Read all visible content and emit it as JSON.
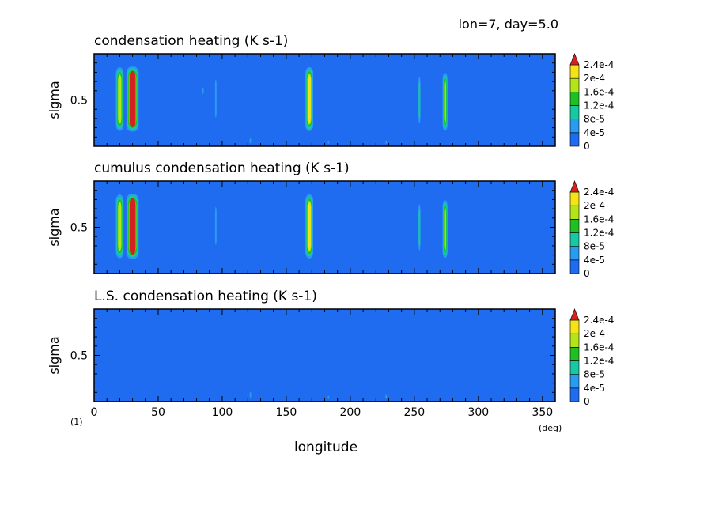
{
  "header": "lon=7, day=5.0",
  "figure_note": "(1)",
  "x_unit": "(deg)",
  "xlabel": "longitude",
  "colors": [
    "#1f6cf0",
    "#2a9cf0",
    "#17c8a3",
    "#21bf24",
    "#b3e51a",
    "#f4e31a",
    "#f09a10",
    "#d42222"
  ],
  "chart_data": [
    {
      "type": "heatmap",
      "title": "condensation heating (K s-1)",
      "ylabel": "sigma",
      "xlim": [
        0,
        360
      ],
      "ylim": [
        1.0,
        0.0
      ],
      "xticks": [
        0,
        50,
        100,
        150,
        200,
        250,
        300,
        350
      ],
      "yticks": [
        0.5
      ],
      "levels": [
        0,
        4e-05,
        8e-05,
        0.00012,
        0.00016,
        0.0002,
        0.00024
      ],
      "level_labels": [
        "0",
        "4e-5",
        "8e-5",
        "1.2e-4",
        "1.6e-4",
        "2e-4",
        "2.4e-4"
      ],
      "features": [
        {
          "x": 20,
          "width": 6,
          "sigma_top": 0.12,
          "sigma_bottom": 0.86,
          "peak": 0.00019
        },
        {
          "x": 30,
          "width": 9,
          "sigma_top": 0.12,
          "sigma_bottom": 0.86,
          "peak": 0.00026
        },
        {
          "x": 95,
          "width": 2,
          "sigma_top": 0.22,
          "sigma_bottom": 0.75,
          "peak": 6e-05
        },
        {
          "x": 85,
          "width": 1,
          "sigma_top": 0.35,
          "sigma_bottom": 0.45,
          "peak": 5e-05
        },
        {
          "x": 168,
          "width": 6,
          "sigma_top": 0.12,
          "sigma_bottom": 0.86,
          "peak": 0.00021
        },
        {
          "x": 254,
          "width": 2,
          "sigma_top": 0.2,
          "sigma_bottom": 0.8,
          "peak": 8e-05
        },
        {
          "x": 274,
          "width": 4,
          "sigma_top": 0.18,
          "sigma_bottom": 0.86,
          "peak": 0.00017
        },
        {
          "x": 122,
          "width": 2,
          "sigma_top": 0.9,
          "sigma_bottom": 0.98,
          "peak": 5e-05
        },
        {
          "x": 228,
          "width": 1.5,
          "sigma_top": 0.93,
          "sigma_bottom": 0.98,
          "peak": 5e-05
        },
        {
          "x": 183,
          "width": 1.5,
          "sigma_top": 0.93,
          "sigma_bottom": 0.98,
          "peak": 4.5e-05
        }
      ]
    },
    {
      "type": "heatmap",
      "title": "cumulus condensation heating (K s-1)",
      "ylabel": "sigma",
      "xlim": [
        0,
        360
      ],
      "ylim": [
        1.0,
        0.0
      ],
      "xticks": [
        0,
        50,
        100,
        150,
        200,
        250,
        300,
        350
      ],
      "yticks": [
        0.5
      ],
      "levels": [
        0,
        4e-05,
        8e-05,
        0.00012,
        0.00016,
        0.0002,
        0.00024
      ],
      "level_labels": [
        "0",
        "4e-5",
        "8e-5",
        "1.2e-4",
        "1.6e-4",
        "2e-4",
        "2.4e-4"
      ],
      "features": [
        {
          "x": 20,
          "width": 6,
          "sigma_top": 0.12,
          "sigma_bottom": 0.86,
          "peak": 0.00019
        },
        {
          "x": 30,
          "width": 9,
          "sigma_top": 0.12,
          "sigma_bottom": 0.86,
          "peak": 0.00026
        },
        {
          "x": 95,
          "width": 2,
          "sigma_top": 0.22,
          "sigma_bottom": 0.75,
          "peak": 6e-05
        },
        {
          "x": 168,
          "width": 6,
          "sigma_top": 0.12,
          "sigma_bottom": 0.86,
          "peak": 0.00021
        },
        {
          "x": 254,
          "width": 2,
          "sigma_top": 0.2,
          "sigma_bottom": 0.8,
          "peak": 8e-05
        },
        {
          "x": 274,
          "width": 4,
          "sigma_top": 0.18,
          "sigma_bottom": 0.86,
          "peak": 0.00017
        }
      ]
    },
    {
      "type": "heatmap",
      "title": "L.S. condensation heating (K s-1)",
      "ylabel": "sigma",
      "xlim": [
        0,
        360
      ],
      "ylim": [
        1.0,
        0.0
      ],
      "xticks": [
        0,
        50,
        100,
        150,
        200,
        250,
        300,
        350
      ],
      "yticks": [
        0.5
      ],
      "levels": [
        0,
        4e-05,
        8e-05,
        0.00012,
        0.00016,
        0.0002,
        0.00024
      ],
      "level_labels": [
        "0",
        "4e-5",
        "8e-5",
        "1.2e-4",
        "1.6e-4",
        "2e-4",
        "2.4e-4"
      ],
      "features": [
        {
          "x": 122,
          "width": 2,
          "sigma_top": 0.88,
          "sigma_bottom": 0.98,
          "peak": 5e-05
        },
        {
          "x": 183,
          "width": 1.5,
          "sigma_top": 0.93,
          "sigma_bottom": 0.98,
          "peak": 4.5e-05
        },
        {
          "x": 228,
          "width": 1.5,
          "sigma_top": 0.92,
          "sigma_bottom": 0.98,
          "peak": 5e-05
        }
      ]
    }
  ]
}
